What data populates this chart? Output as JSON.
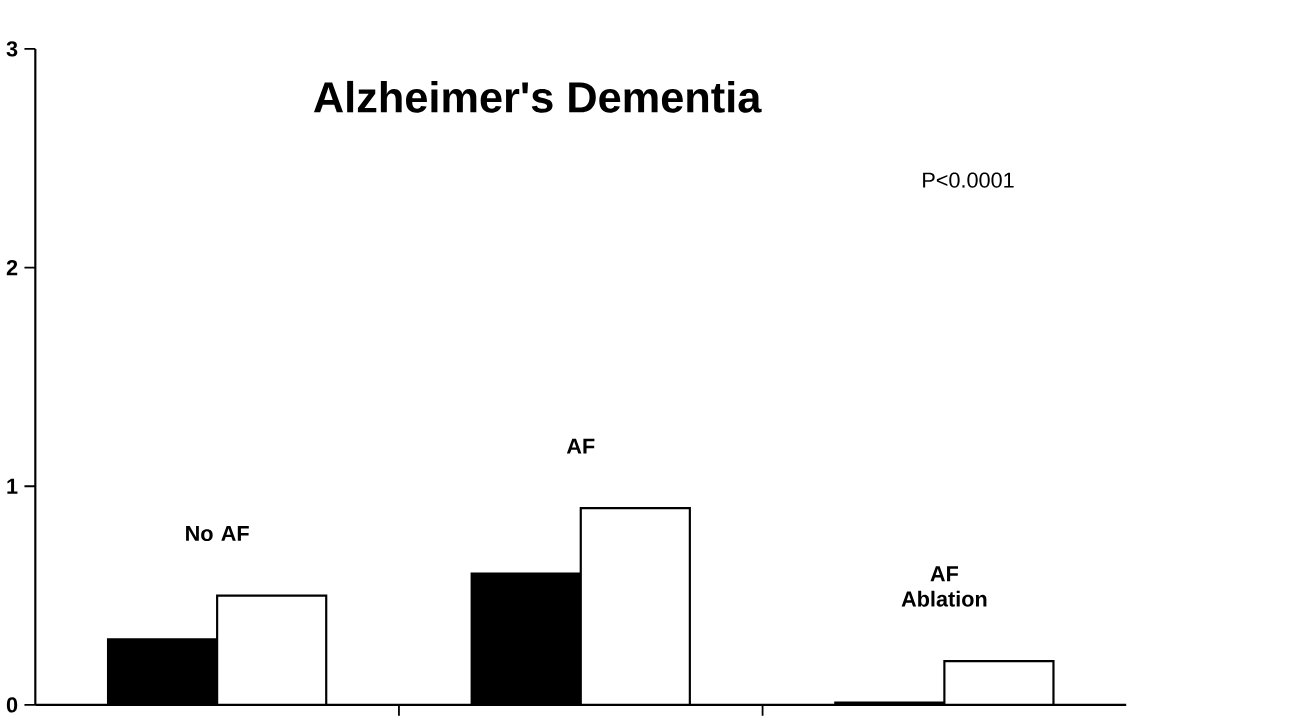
{
  "chart_data": {
    "type": "bar",
    "title": "Alzheimer's Dementia",
    "categories": [
      "No AF",
      "AF",
      "AF Ablation"
    ],
    "series": [
      {
        "color": "#000000",
        "values": [
          0.3,
          0.6,
          0.01
        ]
      },
      {
        "color": "#ffffff",
        "values": [
          0.5,
          0.9,
          0.2
        ]
      }
    ],
    "annotations": [
      "P<0.0001"
    ],
    "ylim": [
      0,
      3
    ],
    "yticks": [
      0,
      1,
      2,
      3
    ]
  }
}
